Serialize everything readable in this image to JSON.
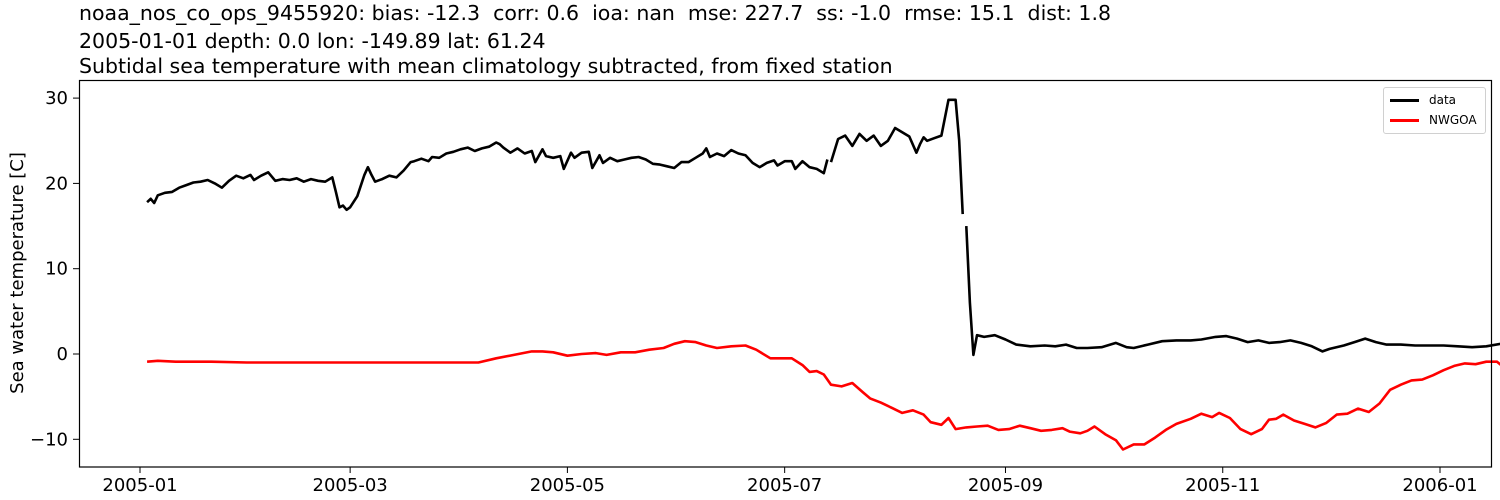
{
  "chart_data": {
    "type": "line",
    "title": [
      "noaa_nos_co_ops_9455920: bias: -12.3  corr: 0.6  ioa: nan  mse: 227.7  ss: -1.0  rmse: 15.1  dist: 1.8",
      "2005-01-01 depth: 0.0 lon: -149.89 lat: 61.24",
      "Subtidal sea temperature with mean climatology subtracted, from fixed station"
    ],
    "xlabel": "",
    "ylabel": "Sea water temperature [C]",
    "ylim": [
      -13.4,
      32.1
    ],
    "xlim": [
      "2004-12-19",
      "2006-01-15"
    ],
    "xticks": [
      "2005-01",
      "2005-03",
      "2005-05",
      "2005-07",
      "2005-09",
      "2005-11",
      "2006-01"
    ],
    "yticks": [
      -10,
      0,
      10,
      20,
      30
    ],
    "ytick_labels": [
      "−10",
      "0",
      "10",
      "20",
      "30"
    ],
    "grid": false,
    "legend_position": "upper right",
    "series": [
      {
        "name": "data",
        "color": "#000000",
        "note": "x = days since 2005-01-01; null marks a gap",
        "points": [
          [
            2,
            17.8
          ],
          [
            3,
            18.2
          ],
          [
            4,
            17.7
          ],
          [
            5,
            18.6
          ],
          [
            7,
            18.9
          ],
          [
            9,
            19.0
          ],
          [
            11,
            19.5
          ],
          [
            13,
            19.8
          ],
          [
            15,
            20.1
          ],
          [
            17,
            20.2
          ],
          [
            19,
            20.4
          ],
          [
            21,
            20.0
          ],
          [
            23,
            19.5
          ],
          [
            25,
            20.3
          ],
          [
            27,
            20.9
          ],
          [
            29,
            20.6
          ],
          [
            31,
            21.0
          ],
          [
            32,
            20.4
          ],
          [
            34,
            20.9
          ],
          [
            36,
            21.3
          ],
          [
            38,
            20.3
          ],
          [
            40,
            20.5
          ],
          [
            42,
            20.4
          ],
          [
            44,
            20.6
          ],
          [
            46,
            20.2
          ],
          [
            48,
            20.5
          ],
          [
            50,
            20.3
          ],
          [
            52,
            20.2
          ],
          [
            54,
            20.7
          ],
          [
            55,
            19.0
          ],
          [
            56,
            17.2
          ],
          [
            57,
            17.4
          ],
          [
            58,
            16.9
          ],
          [
            59,
            17.2
          ],
          [
            61,
            18.5
          ],
          [
            63,
            21.0
          ],
          [
            64,
            21.9
          ],
          [
            65,
            21.0
          ],
          [
            66,
            20.2
          ],
          [
            68,
            20.5
          ],
          [
            70,
            20.9
          ],
          [
            72,
            20.7
          ],
          [
            74,
            21.5
          ],
          [
            76,
            22.5
          ],
          [
            77,
            22.6
          ],
          [
            79,
            22.9
          ],
          [
            81,
            22.6
          ],
          [
            82,
            23.1
          ],
          [
            84,
            23.0
          ],
          [
            86,
            23.5
          ],
          [
            88,
            23.7
          ],
          [
            90,
            24.0
          ],
          [
            92,
            24.2
          ],
          [
            94,
            23.8
          ],
          [
            96,
            24.1
          ],
          [
            98,
            24.3
          ],
          [
            100,
            24.8
          ],
          [
            101,
            24.6
          ],
          [
            102,
            24.2
          ],
          [
            104,
            23.6
          ],
          [
            106,
            24.1
          ],
          [
            108,
            23.5
          ],
          [
            110,
            23.8
          ],
          [
            111,
            22.5
          ],
          [
            113,
            24.0
          ],
          [
            114,
            23.2
          ],
          [
            116,
            23.0
          ],
          [
            118,
            23.2
          ],
          [
            119,
            21.7
          ],
          [
            121,
            23.6
          ],
          [
            122,
            23.0
          ],
          [
            124,
            23.6
          ],
          [
            126,
            23.7
          ],
          [
            127,
            21.8
          ],
          [
            129,
            23.3
          ],
          [
            130,
            22.4
          ],
          [
            132,
            23.0
          ],
          [
            134,
            22.6
          ],
          [
            136,
            22.8
          ],
          [
            138,
            23.0
          ],
          [
            140,
            23.1
          ],
          [
            142,
            22.8
          ],
          [
            144,
            22.3
          ],
          [
            146,
            22.2
          ],
          [
            148,
            22.0
          ],
          [
            150,
            21.8
          ],
          [
            152,
            22.5
          ],
          [
            154,
            22.5
          ],
          [
            156,
            23.0
          ],
          [
            158,
            23.5
          ],
          [
            159,
            24.1
          ],
          [
            160,
            23.1
          ],
          [
            162,
            23.5
          ],
          [
            164,
            23.2
          ],
          [
            166,
            23.9
          ],
          [
            168,
            23.5
          ],
          [
            170,
            23.3
          ],
          [
            172,
            22.4
          ],
          [
            174,
            21.9
          ],
          [
            176,
            22.4
          ],
          [
            178,
            22.7
          ],
          [
            179,
            22.1
          ],
          [
            181,
            22.6
          ],
          [
            183,
            22.6
          ],
          [
            184,
            21.7
          ],
          [
            186,
            22.6
          ],
          [
            188,
            21.9
          ],
          [
            190,
            21.7
          ],
          [
            192,
            21.2
          ],
          [
            193,
            22.8
          ],
          [
            null,
            null
          ],
          [
            194,
            22.5
          ],
          [
            196,
            25.2
          ],
          [
            198,
            25.6
          ],
          [
            200,
            24.4
          ],
          [
            202,
            25.8
          ],
          [
            204,
            25.0
          ],
          [
            206,
            25.6
          ],
          [
            208,
            24.4
          ],
          [
            210,
            25.0
          ],
          [
            212,
            26.5
          ],
          [
            214,
            26.0
          ],
          [
            216,
            25.5
          ],
          [
            218,
            23.6
          ],
          [
            219,
            24.6
          ],
          [
            220,
            25.4
          ],
          [
            221,
            25.0
          ],
          [
            223,
            25.3
          ],
          [
            225,
            25.6
          ],
          [
            227,
            29.8
          ],
          [
            229,
            29.8
          ],
          [
            230,
            25.0
          ],
          [
            231,
            16.4
          ],
          [
            null,
            null
          ],
          [
            232,
            15.0
          ],
          [
            233,
            6.0
          ],
          [
            234,
            -0.1
          ],
          [
            235,
            2.2
          ],
          [
            237,
            2.0
          ],
          [
            240,
            2.2
          ],
          [
            243,
            1.7
          ],
          [
            246,
            1.1
          ],
          [
            250,
            0.9
          ],
          [
            254,
            1.0
          ],
          [
            257,
            0.9
          ],
          [
            260,
            1.1
          ],
          [
            263,
            0.7
          ],
          [
            266,
            0.7
          ],
          [
            270,
            0.8
          ],
          [
            274,
            1.3
          ],
          [
            277,
            0.8
          ],
          [
            279,
            0.7
          ],
          [
            283,
            1.1
          ],
          [
            287,
            1.5
          ],
          [
            291,
            1.6
          ],
          [
            295,
            1.6
          ],
          [
            298,
            1.7
          ],
          [
            302,
            2.0
          ],
          [
            305,
            2.1
          ],
          [
            308,
            1.8
          ],
          [
            311,
            1.4
          ],
          [
            314,
            1.6
          ],
          [
            317,
            1.3
          ],
          [
            320,
            1.4
          ],
          [
            323,
            1.6
          ],
          [
            326,
            1.3
          ],
          [
            329,
            0.9
          ],
          [
            332,
            0.3
          ],
          [
            334,
            0.6
          ],
          [
            338,
            1.0
          ],
          [
            341,
            1.4
          ],
          [
            344,
            1.8
          ],
          [
            347,
            1.4
          ],
          [
            350,
            1.1
          ],
          [
            354,
            1.1
          ],
          [
            358,
            1.0
          ],
          [
            362,
            1.0
          ],
          [
            366,
            1.0
          ],
          [
            370,
            0.9
          ],
          [
            374,
            0.8
          ],
          [
            378,
            0.9
          ],
          [
            382,
            1.2
          ],
          [
            386,
            1.4
          ],
          [
            390,
            1.3
          ],
          [
            394,
            1.3
          ],
          [
            398,
            1.4
          ],
          [
            401,
            1.1
          ],
          [
            403,
            1.3
          ],
          [
            407,
            1.3
          ],
          [
            410,
            1.0
          ]
        ]
      },
      {
        "name": "NWGOA",
        "color": "#ff0000",
        "note": "x = days since 2005-01-01",
        "points": [
          [
            2,
            -0.9
          ],
          [
            5,
            -0.8
          ],
          [
            10,
            -0.9
          ],
          [
            20,
            -0.9
          ],
          [
            30,
            -1.0
          ],
          [
            40,
            -1.0
          ],
          [
            50,
            -1.0
          ],
          [
            60,
            -1.0
          ],
          [
            70,
            -1.0
          ],
          [
            80,
            -1.0
          ],
          [
            85,
            -1.0
          ],
          [
            90,
            -1.0
          ],
          [
            95,
            -1.0
          ],
          [
            100,
            -0.5
          ],
          [
            105,
            -0.1
          ],
          [
            110,
            0.3
          ],
          [
            113,
            0.3
          ],
          [
            116,
            0.2
          ],
          [
            120,
            -0.2
          ],
          [
            124,
            0.0
          ],
          [
            128,
            0.1
          ],
          [
            131,
            -0.1
          ],
          [
            135,
            0.2
          ],
          [
            139,
            0.2
          ],
          [
            143,
            0.5
          ],
          [
            147,
            0.7
          ],
          [
            150,
            1.2
          ],
          [
            153,
            1.5
          ],
          [
            156,
            1.4
          ],
          [
            159,
            1.0
          ],
          [
            162,
            0.7
          ],
          [
            166,
            0.9
          ],
          [
            170,
            1.0
          ],
          [
            173,
            0.5
          ],
          [
            177,
            -0.5
          ],
          [
            180,
            -0.5
          ],
          [
            183,
            -0.5
          ],
          [
            186,
            -1.3
          ],
          [
            188,
            -2.1
          ],
          [
            190,
            -2.0
          ],
          [
            192,
            -2.4
          ],
          [
            194,
            -3.6
          ],
          [
            197,
            -3.8
          ],
          [
            200,
            -3.4
          ],
          [
            203,
            -4.5
          ],
          [
            205,
            -5.2
          ],
          [
            208,
            -5.7
          ],
          [
            211,
            -6.3
          ],
          [
            214,
            -6.9
          ],
          [
            217,
            -6.6
          ],
          [
            220,
            -7.1
          ],
          [
            222,
            -8.0
          ],
          [
            225,
            -8.3
          ],
          [
            227,
            -7.5
          ],
          [
            229,
            -8.8
          ],
          [
            232,
            -8.6
          ],
          [
            235,
            -8.5
          ],
          [
            238,
            -8.4
          ],
          [
            241,
            -8.9
          ],
          [
            244,
            -8.8
          ],
          [
            247,
            -8.4
          ],
          [
            250,
            -8.7
          ],
          [
            253,
            -9.0
          ],
          [
            256,
            -8.9
          ],
          [
            259,
            -8.7
          ],
          [
            261,
            -9.1
          ],
          [
            264,
            -9.3
          ],
          [
            266,
            -9.0
          ],
          [
            268,
            -8.5
          ],
          [
            271,
            -9.4
          ],
          [
            274,
            -10.1
          ],
          [
            276,
            -11.2
          ],
          [
            279,
            -10.6
          ],
          [
            282,
            -10.6
          ],
          [
            285,
            -9.8
          ],
          [
            288,
            -8.9
          ],
          [
            291,
            -8.2
          ],
          [
            295,
            -7.6
          ],
          [
            298,
            -7.0
          ],
          [
            301,
            -7.4
          ],
          [
            303,
            -6.9
          ],
          [
            306,
            -7.5
          ],
          [
            309,
            -8.8
          ],
          [
            312,
            -9.4
          ],
          [
            315,
            -8.8
          ],
          [
            317,
            -7.7
          ],
          [
            319,
            -7.6
          ],
          [
            321,
            -7.1
          ],
          [
            324,
            -7.8
          ],
          [
            327,
            -8.2
          ],
          [
            330,
            -8.6
          ],
          [
            333,
            -8.1
          ],
          [
            336,
            -7.1
          ],
          [
            339,
            -7.0
          ],
          [
            342,
            -6.4
          ],
          [
            345,
            -6.8
          ],
          [
            348,
            -5.8
          ],
          [
            351,
            -4.2
          ],
          [
            354,
            -3.6
          ],
          [
            357,
            -3.1
          ],
          [
            360,
            -3.0
          ],
          [
            363,
            -2.5
          ],
          [
            366,
            -1.9
          ],
          [
            369,
            -1.4
          ],
          [
            372,
            -1.1
          ],
          [
            375,
            -1.2
          ],
          [
            378,
            -0.9
          ],
          [
            381,
            -0.9
          ],
          [
            383,
            -1.6
          ],
          [
            385,
            -1.8
          ],
          [
            387,
            -2.4
          ],
          [
            389,
            -1.6
          ],
          [
            391,
            -1.2
          ],
          [
            393,
            -1.2
          ],
          [
            395,
            -0.8
          ],
          [
            397,
            -1.2
          ],
          [
            399,
            -1.3
          ]
        ]
      }
    ],
    "x_domain_days": [
      -12.5,
      380
    ],
    "x_domain_note": "2005-01-01 = day 0, 2006-01-01 = day 365"
  },
  "legend": {
    "items": [
      {
        "label": "data",
        "color": "#000000"
      },
      {
        "label": "NWGOA",
        "color": "#ff0000"
      }
    ]
  }
}
